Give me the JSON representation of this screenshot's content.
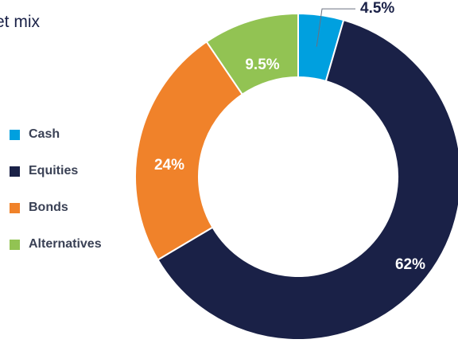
{
  "title": "et mix",
  "chart_data": {
    "type": "pie",
    "donut": true,
    "title": "et mix",
    "legend_position": "left",
    "start_angle_deg": 0,
    "direction": "clockwise",
    "slices": [
      {
        "name": "Cash",
        "value": 4.5,
        "label": "4.5%",
        "color": "#00a0df",
        "label_color": "#1a2147"
      },
      {
        "name": "Equities",
        "value": 62,
        "label": "62%",
        "color": "#1a2147",
        "label_color": "#ffffff"
      },
      {
        "name": "Bonds",
        "value": 24,
        "label": "24%",
        "color": "#f0822a",
        "label_color": "#ffffff"
      },
      {
        "name": "Alternatives",
        "value": 9.5,
        "label": "9.5%",
        "color": "#92c353",
        "label_color": "#ffffff"
      }
    ]
  }
}
